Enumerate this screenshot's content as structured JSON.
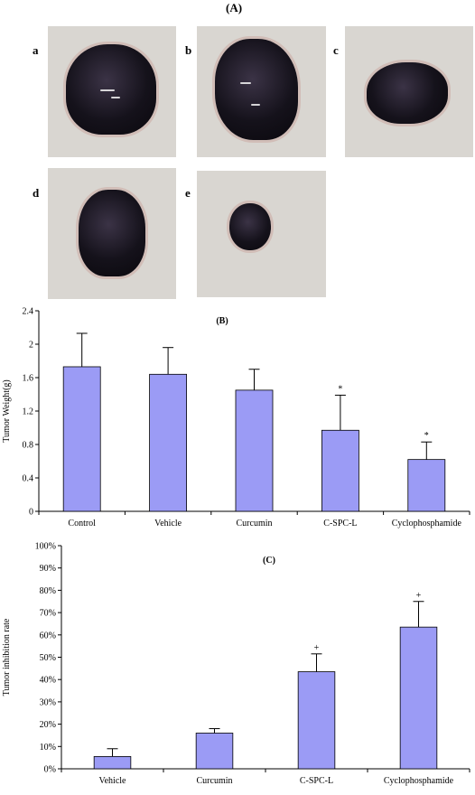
{
  "panel_a": {
    "title": "(A)",
    "photo_labels": [
      "a",
      "b",
      "c",
      "d",
      "e"
    ]
  },
  "chart_data": [
    {
      "type": "bar",
      "title": "(B)",
      "ylabel": "Tumor Weight(g)",
      "xlabel": "",
      "categories": [
        "Control",
        "Vehicle",
        "Curcumin",
        "C-SPC-L",
        "Cyclophosphamide"
      ],
      "values": [
        1.73,
        1.64,
        1.45,
        0.97,
        0.62
      ],
      "errors": [
        0.4,
        0.32,
        0.25,
        0.42,
        0.21
      ],
      "markers": [
        "",
        "",
        "",
        "*",
        "*"
      ],
      "yticks": [
        "0",
        "0.4",
        "0.8",
        "1.2",
        "1.6",
        "2",
        "2.4"
      ],
      "ylim": [
        0,
        2.4
      ],
      "bar_color": "#9b9bf5",
      "grid": false,
      "legend": false
    },
    {
      "type": "bar",
      "title": "(C)",
      "ylabel": "Tumor inhibition rate",
      "xlabel": "",
      "categories": [
        "Vehicle",
        "Curcumin",
        "C-SPC-L",
        "Cyclophosphamide"
      ],
      "values": [
        5.5,
        16.0,
        43.5,
        63.5
      ],
      "errors": [
        3.5,
        2.0,
        8.0,
        11.5
      ],
      "markers": [
        "",
        "",
        "+",
        "+"
      ],
      "yticks": [
        "0%",
        "10%",
        "20%",
        "30%",
        "40%",
        "50%",
        "60%",
        "70%",
        "80%",
        "90%",
        "100%"
      ],
      "ylim": [
        0,
        100
      ],
      "bar_color": "#9b9bf5",
      "grid": false,
      "legend": false
    }
  ]
}
